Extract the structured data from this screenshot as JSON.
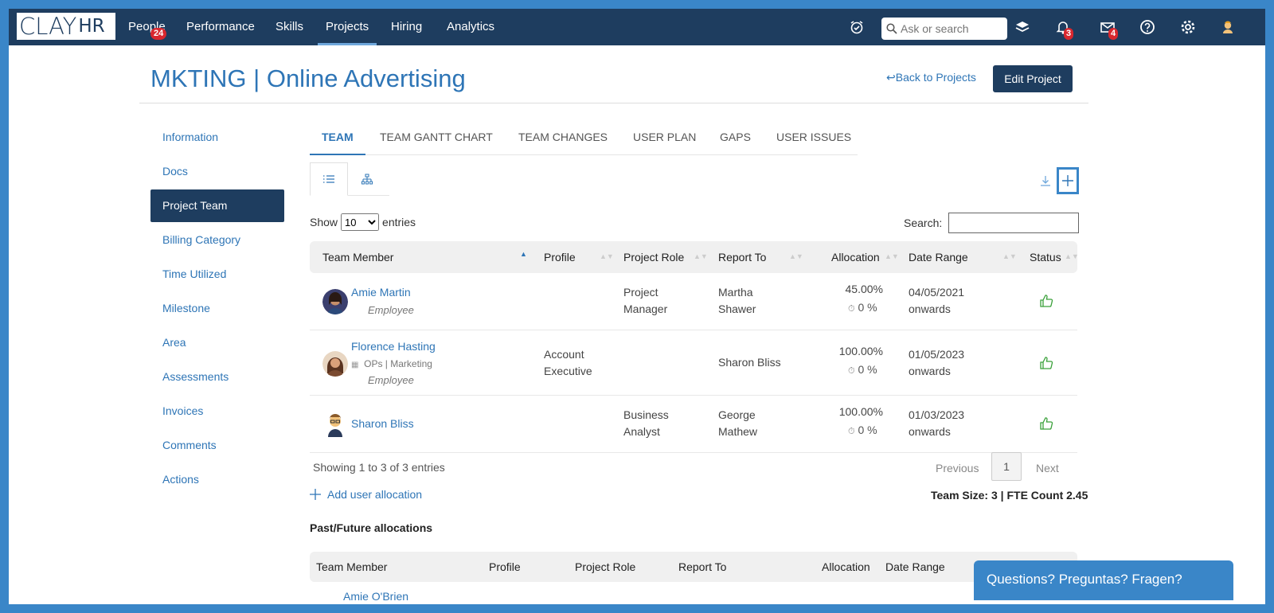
{
  "brand": {
    "logo_main": "CLAY",
    "logo_sub": "HR"
  },
  "nav": {
    "items": [
      {
        "label": "People",
        "badge": "24"
      },
      {
        "label": "Performance"
      },
      {
        "label": "Skills"
      },
      {
        "label": "Projects"
      },
      {
        "label": "Hiring"
      },
      {
        "label": "Analytics"
      }
    ],
    "search_placeholder": "Ask or search",
    "notifications_badge": "3",
    "messages_badge": "4"
  },
  "header": {
    "title": "MKTING | Online Advertising",
    "back_link": "Back to Projects",
    "edit_button": "Edit Project"
  },
  "sidebar": {
    "items": [
      {
        "label": "Information"
      },
      {
        "label": "Docs"
      },
      {
        "label": "Project Team"
      },
      {
        "label": "Billing Category"
      },
      {
        "label": "Time Utilized"
      },
      {
        "label": "Milestone"
      },
      {
        "label": "Area"
      },
      {
        "label": "Assessments"
      },
      {
        "label": "Invoices"
      },
      {
        "label": "Comments"
      },
      {
        "label": "Actions"
      }
    ]
  },
  "tabs": [
    "TEAM",
    "TEAM GANTT CHART",
    "TEAM CHANGES",
    "USER PLAN",
    "GAPS",
    "USER ISSUES"
  ],
  "table_controls": {
    "show_label": "Show",
    "entries_value": "10",
    "entries_label": "entries",
    "search_label": "Search:"
  },
  "table": {
    "headers": [
      "Team Member",
      "Profile",
      "Project Role",
      "Report To",
      "Allocation",
      "Date Range",
      "Status"
    ],
    "rows": [
      {
        "name": "Amie Martin",
        "dept": "",
        "type": "Employee",
        "profile_line1": "",
        "profile_line2": "",
        "role_line1": "Project",
        "role_line2": "Manager",
        "report_line1": "Martha",
        "report_line2": "Shawer",
        "allocation": "45.00%",
        "util": "0 %",
        "date_line1": "04/05/2021",
        "date_line2": "onwards"
      },
      {
        "name": "Florence Hasting",
        "dept": "OPs | Marketing",
        "type": "Employee",
        "profile_line1": "Account",
        "profile_line2": "Executive",
        "role_line1": "",
        "role_line2": "",
        "report_line1": "Sharon Bliss",
        "report_line2": "",
        "allocation": "100.00%",
        "util": "0 %",
        "date_line1": "01/05/2023",
        "date_line2": "onwards"
      },
      {
        "name": "Sharon Bliss",
        "dept": "",
        "type": "",
        "profile_line1": "",
        "profile_line2": "",
        "role_line1": "Business",
        "role_line2": "Analyst",
        "report_line1": "George",
        "report_line2": "Mathew",
        "allocation": "100.00%",
        "util": "0 %",
        "date_line1": "01/03/2023",
        "date_line2": "onwards"
      }
    ]
  },
  "pagination": {
    "showing": "Showing 1 to 3 of 3 entries",
    "previous": "Previous",
    "page": "1",
    "next": "Next"
  },
  "add_allocation": "Add user allocation",
  "team_size": "Team Size: 3 | FTE Count 2.45",
  "past_section": {
    "title": "Past/Future allocations",
    "headers": [
      "Team Member",
      "Profile",
      "Project Role",
      "Report To",
      "Allocation",
      "Date Range"
    ],
    "partial_row_name": "Amie O'Brien"
  },
  "chat": {
    "label": "Questions? Preguntas? Fragen?"
  },
  "colors": {
    "nav_bg": "#1e3d5f",
    "accent": "#2e75b6",
    "frame": "#3a86c8",
    "status_green": "#3aa03a",
    "badge_red": "#d9272e"
  }
}
